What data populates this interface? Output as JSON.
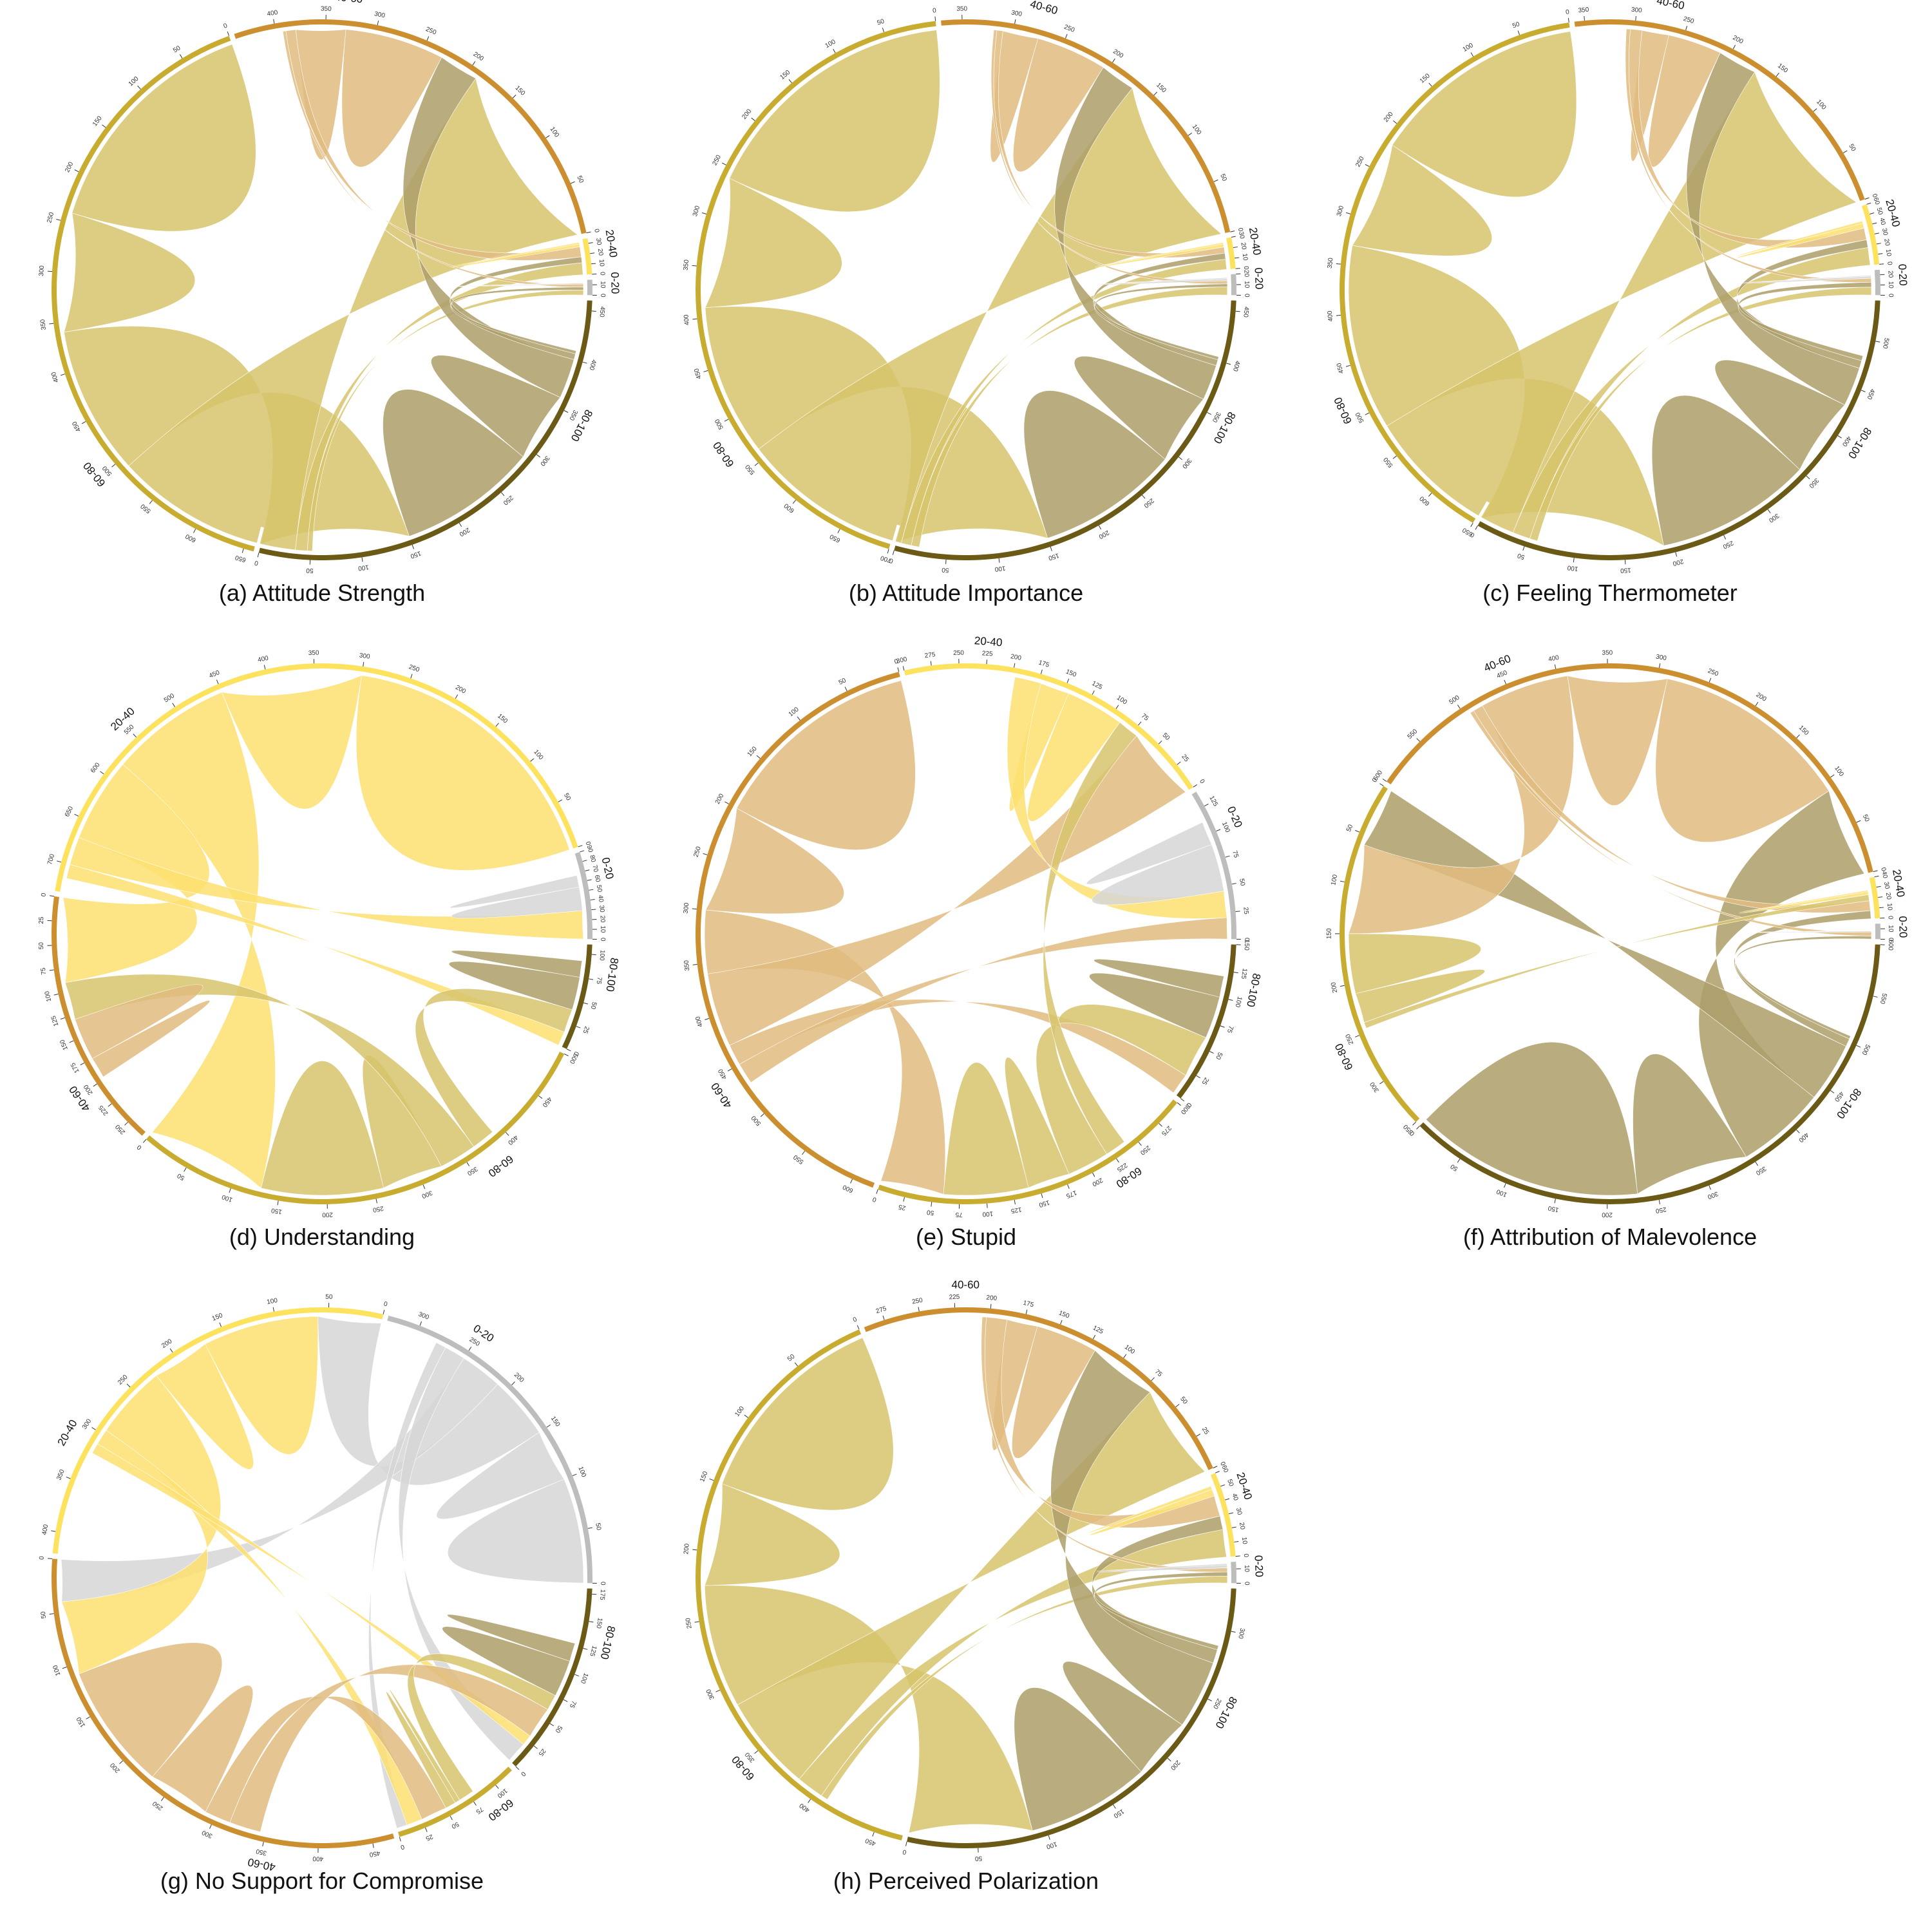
{
  "palette": {
    "0-20": "#bdbdbd",
    "20-40": "#fde25e",
    "40-60": "#cc8f2f",
    "60-80": "#c8ac30",
    "80-100": "#6b5a16"
  },
  "ribbon_palette": {
    "0-20": "#d6d6d6",
    "20-40": "#fde170",
    "40-60": "#e1bb7f",
    "60-80": "#d7c46c",
    "80-100": "#ad9f6a"
  },
  "chart_data": [
    {
      "type": "chord",
      "caption": "(a) Attitude Strength",
      "groups": [
        {
          "label": "0-20",
          "total": 15
        },
        {
          "label": "20-40",
          "total": 35
        },
        {
          "label": "40-60",
          "total": 440
        },
        {
          "label": "60-80",
          "total": 660
        },
        {
          "label": "80-100",
          "total": 460
        }
      ],
      "flows": [
        {
          "from": "60-80",
          "to": "60-80",
          "value": 240
        },
        {
          "from": "60-80",
          "to": "80-100",
          "value": 150
        },
        {
          "from": "60-80",
          "to": "40-60",
          "value": 190
        },
        {
          "from": "60-80",
          "to": "20-40",
          "value": 12
        },
        {
          "from": "60-80",
          "to": "0-20",
          "value": 5
        },
        {
          "from": "80-100",
          "to": "80-100",
          "value": 140
        },
        {
          "from": "80-100",
          "to": "40-60",
          "value": 40
        },
        {
          "from": "80-100",
          "to": "20-40",
          "value": 6
        },
        {
          "from": "80-100",
          "to": "0-20",
          "value": 3
        },
        {
          "from": "40-60",
          "to": "40-60",
          "value": 100
        },
        {
          "from": "40-60",
          "to": "20-40",
          "value": 10
        },
        {
          "from": "40-60",
          "to": "0-20",
          "value": 3
        },
        {
          "from": "20-40",
          "to": "20-40",
          "value": 3
        },
        {
          "from": "0-20",
          "to": "0-20",
          "value": 1
        }
      ]
    },
    {
      "type": "chord",
      "caption": "(b) Attitude Importance",
      "groups": [
        {
          "label": "0-20",
          "total": 20
        },
        {
          "label": "20-40",
          "total": 30
        },
        {
          "label": "40-60",
          "total": 370
        },
        {
          "label": "60-80",
          "total": 700
        },
        {
          "label": "80-100",
          "total": 460
        }
      ],
      "flows": [
        {
          "from": "60-80",
          "to": "60-80",
          "value": 260
        },
        {
          "from": "60-80",
          "to": "80-100",
          "value": 150
        },
        {
          "from": "60-80",
          "to": "40-60",
          "value": 170
        },
        {
          "from": "60-80",
          "to": "20-40",
          "value": 10
        },
        {
          "from": "60-80",
          "to": "0-20",
          "value": 8
        },
        {
          "from": "80-100",
          "to": "80-100",
          "value": 140
        },
        {
          "from": "80-100",
          "to": "40-60",
          "value": 35
        },
        {
          "from": "80-100",
          "to": "20-40",
          "value": 6
        },
        {
          "from": "80-100",
          "to": "0-20",
          "value": 3
        },
        {
          "from": "40-60",
          "to": "40-60",
          "value": 70
        },
        {
          "from": "40-60",
          "to": "20-40",
          "value": 6
        },
        {
          "from": "40-60",
          "to": "0-20",
          "value": 3
        },
        {
          "from": "20-40",
          "to": "20-40",
          "value": 3
        },
        {
          "from": "0-20",
          "to": "0-20",
          "value": 2
        }
      ]
    },
    {
      "type": "chord",
      "caption": "(c) Feeling Thermometer",
      "groups": [
        {
          "label": "0-20",
          "total": 25
        },
        {
          "label": "20-40",
          "total": 60
        },
        {
          "label": "40-60",
          "total": 360
        },
        {
          "label": "60-80",
          "total": 650
        },
        {
          "label": "80-100",
          "total": 540
        }
      ],
      "flows": [
        {
          "from": "60-80",
          "to": "60-80",
          "value": 220
        },
        {
          "from": "60-80",
          "to": "80-100",
          "value": 190
        },
        {
          "from": "60-80",
          "to": "40-60",
          "value": 170
        },
        {
          "from": "60-80",
          "to": "20-40",
          "value": 18
        },
        {
          "from": "60-80",
          "to": "0-20",
          "value": 8
        },
        {
          "from": "80-100",
          "to": "80-100",
          "value": 160
        },
        {
          "from": "80-100",
          "to": "40-60",
          "value": 40
        },
        {
          "from": "80-100",
          "to": "20-40",
          "value": 8
        },
        {
          "from": "80-100",
          "to": "0-20",
          "value": 5
        },
        {
          "from": "40-60",
          "to": "40-60",
          "value": 55
        },
        {
          "from": "40-60",
          "to": "20-40",
          "value": 12
        },
        {
          "from": "40-60",
          "to": "0-20",
          "value": 4
        },
        {
          "from": "20-40",
          "to": "20-40",
          "value": 5
        },
        {
          "from": "0-20",
          "to": "0-20",
          "value": 2
        }
      ]
    },
    {
      "type": "chord",
      "caption": "(d) Understanding",
      "groups": [
        {
          "label": "0-20",
          "total": 90
        },
        {
          "label": "20-40",
          "total": 730
        },
        {
          "label": "40-60",
          "total": 270
        },
        {
          "label": "60-80",
          "total": 500
        },
        {
          "label": "80-100",
          "total": 110
        }
      ],
      "flows": [
        {
          "from": "20-40",
          "to": "20-40",
          "value": 300
        },
        {
          "from": "20-40",
          "to": "60-80",
          "value": 130
        },
        {
          "from": "20-40",
          "to": "40-60",
          "value": 90
        },
        {
          "from": "20-40",
          "to": "0-20",
          "value": 30
        },
        {
          "from": "20-40",
          "to": "80-100",
          "value": 15
        },
        {
          "from": "60-80",
          "to": "60-80",
          "value": 130
        },
        {
          "from": "60-80",
          "to": "40-60",
          "value": 40
        },
        {
          "from": "60-80",
          "to": "80-100",
          "value": 25
        },
        {
          "from": "40-60",
          "to": "40-60",
          "value": 45
        },
        {
          "from": "80-100",
          "to": "80-100",
          "value": 35
        },
        {
          "from": "0-20",
          "to": "0-20",
          "value": 25
        }
      ]
    },
    {
      "type": "chord",
      "caption": "(e) Stupid",
      "groups": [
        {
          "label": "0-20",
          "total": 140
        },
        {
          "label": "20-40",
          "total": 300
        },
        {
          "label": "40-60",
          "total": 620
        },
        {
          "label": "60-80",
          "total": 300
        },
        {
          "label": "80-100",
          "total": 150
        }
      ],
      "flows": [
        {
          "from": "40-60",
          "to": "40-60",
          "value": 200
        },
        {
          "from": "40-60",
          "to": "60-80",
          "value": 60
        },
        {
          "from": "40-60",
          "to": "20-40",
          "value": 70
        },
        {
          "from": "40-60",
          "to": "80-100",
          "value": 20
        },
        {
          "from": "40-60",
          "to": "0-20",
          "value": 20
        },
        {
          "from": "60-80",
          "to": "60-80",
          "value": 80
        },
        {
          "from": "60-80",
          "to": "80-100",
          "value": 40
        },
        {
          "from": "60-80",
          "to": "20-40",
          "value": 20
        },
        {
          "from": "20-40",
          "to": "20-40",
          "value": 55
        },
        {
          "from": "20-40",
          "to": "0-20",
          "value": 25
        },
        {
          "from": "80-100",
          "to": "80-100",
          "value": 40
        },
        {
          "from": "0-20",
          "to": "0-20",
          "value": 45
        }
      ]
    },
    {
      "type": "chord",
      "caption": "(f) Attribution of Malevolence",
      "groups": [
        {
          "label": "0-20",
          "total": 15
        },
        {
          "label": "20-40",
          "total": 40
        },
        {
          "label": "40-60",
          "total": 600
        },
        {
          "label": "60-80",
          "total": 350
        },
        {
          "label": "80-100",
          "total": 600
        }
      ],
      "flows": [
        {
          "from": "80-100",
          "to": "80-100",
          "value": 230
        },
        {
          "from": "80-100",
          "to": "40-60",
          "value": 90
        },
        {
          "from": "80-100",
          "to": "60-80",
          "value": 60
        },
        {
          "from": "80-100",
          "to": "20-40",
          "value": 8
        },
        {
          "from": "80-100",
          "to": "0-20",
          "value": 3
        },
        {
          "from": "40-60",
          "to": "40-60",
          "value": 200
        },
        {
          "from": "40-60",
          "to": "60-80",
          "value": 90
        },
        {
          "from": "40-60",
          "to": "20-40",
          "value": 10
        },
        {
          "from": "40-60",
          "to": "0-20",
          "value": 4
        },
        {
          "from": "60-80",
          "to": "60-80",
          "value": 60
        },
        {
          "from": "60-80",
          "to": "20-40",
          "value": 6
        },
        {
          "from": "20-40",
          "to": "20-40",
          "value": 3
        },
        {
          "from": "0-20",
          "to": "0-20",
          "value": 1
        }
      ]
    },
    {
      "type": "chord",
      "caption": "(g) No Support for Compromise",
      "groups": [
        {
          "label": "0-20",
          "total": 330
        },
        {
          "label": "20-40",
          "total": 420
        },
        {
          "label": "40-60",
          "total": 470
        },
        {
          "label": "60-80",
          "total": 120
        },
        {
          "label": "80-100",
          "total": 180
        }
      ],
      "flows": [
        {
          "from": "0-20",
          "to": "0-20",
          "value": 100
        },
        {
          "from": "0-20",
          "to": "20-40",
          "value": 60
        },
        {
          "from": "0-20",
          "to": "40-60",
          "value": 40
        },
        {
          "from": "0-20",
          "to": "80-100",
          "value": 20
        },
        {
          "from": "0-20",
          "to": "60-80",
          "value": 10
        },
        {
          "from": "20-40",
          "to": "20-40",
          "value": 110
        },
        {
          "from": "20-40",
          "to": "40-60",
          "value": 70
        },
        {
          "from": "20-40",
          "to": "60-80",
          "value": 15
        },
        {
          "from": "20-40",
          "to": "80-100",
          "value": 10
        },
        {
          "from": "40-60",
          "to": "40-60",
          "value": 120
        },
        {
          "from": "40-60",
          "to": "60-80",
          "value": 25
        },
        {
          "from": "40-60",
          "to": "80-100",
          "value": 30
        },
        {
          "from": "60-80",
          "to": "60-80",
          "value": 10
        },
        {
          "from": "60-80",
          "to": "80-100",
          "value": 15
        },
        {
          "from": "80-100",
          "to": "80-100",
          "value": 35
        }
      ]
    },
    {
      "type": "chord",
      "caption": "(h) Perceived Polarization",
      "groups": [
        {
          "label": "0-20",
          "total": 15
        },
        {
          "label": "20-40",
          "total": 60
        },
        {
          "label": "40-60",
          "total": 290
        },
        {
          "label": "60-80",
          "total": 470
        },
        {
          "label": "80-100",
          "total": 330
        }
      ],
      "flows": [
        {
          "from": "60-80",
          "to": "60-80",
          "value": 150
        },
        {
          "from": "60-80",
          "to": "80-100",
          "value": 90
        },
        {
          "from": "60-80",
          "to": "40-60",
          "value": 70
        },
        {
          "from": "60-80",
          "to": "20-40",
          "value": 20
        },
        {
          "from": "60-80",
          "to": "0-20",
          "value": 5
        },
        {
          "from": "80-100",
          "to": "80-100",
          "value": 90
        },
        {
          "from": "80-100",
          "to": "40-60",
          "value": 50
        },
        {
          "from": "80-100",
          "to": "20-40",
          "value": 10
        },
        {
          "from": "80-100",
          "to": "0-20",
          "value": 3
        },
        {
          "from": "40-60",
          "to": "40-60",
          "value": 45
        },
        {
          "from": "40-60",
          "to": "20-40",
          "value": 15
        },
        {
          "from": "40-60",
          "to": "0-20",
          "value": 3
        },
        {
          "from": "20-40",
          "to": "20-40",
          "value": 5
        },
        {
          "from": "0-20",
          "to": "0-20",
          "value": 2
        }
      ]
    }
  ]
}
